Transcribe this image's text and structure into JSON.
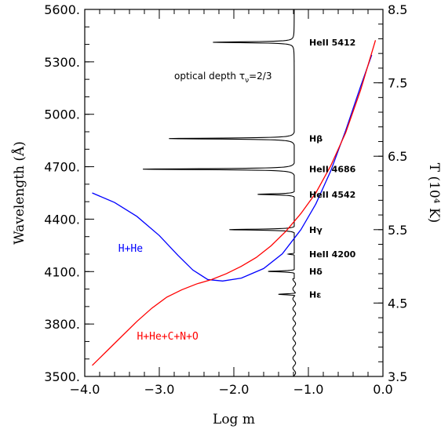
{
  "chart_data": {
    "type": "line",
    "xlabel": "Log m",
    "ylabel_left": "Wavelength (Å)",
    "ylabel_right": "T (10⁴ K)",
    "xlim": [
      -4.0,
      0.0
    ],
    "ylim_left": [
      3500,
      5600
    ],
    "ylim_right": [
      3.5,
      8.5
    ],
    "x_ticks": [
      -4.0,
      -3.0,
      -2.0,
      -1.0,
      0.0
    ],
    "x_tick_labels": [
      "−4.0",
      "−3.0",
      "−2.0",
      "−1.0",
      "0.0"
    ],
    "y_left_ticks": [
      3500,
      3800,
      4100,
      4400,
      4700,
      5000,
      5300,
      5600
    ],
    "y_left_tick_labels": [
      "3500.",
      "3800.",
      "4100.",
      "4400.",
      "4700.",
      "5000.",
      "5300.",
      "5600."
    ],
    "y_right_ticks": [
      3.5,
      4.5,
      5.5,
      6.5,
      7.5,
      8.5
    ],
    "y_right_tick_labels": [
      "3.5",
      "4.5",
      "5.5",
      "6.5",
      "7.5",
      "8.5"
    ],
    "grid": false,
    "optical_depth_label": "optical depth τν=2/3",
    "optical_depth_text": {
      "main": "optical depth τ",
      "sub": "ν",
      "tail": "=2/3"
    },
    "optical_depth_continuum": [
      [
        -1.09,
        3500
      ],
      [
        -1.1,
        3580
      ],
      [
        -1.115,
        3700
      ],
      [
        -1.125,
        3800
      ],
      [
        -1.135,
        3900
      ],
      [
        -1.14,
        3980
      ],
      [
        -1.15,
        4080
      ],
      [
        -1.155,
        4200
      ],
      [
        -1.155,
        4300
      ],
      [
        -1.16,
        4400
      ],
      [
        -1.165,
        4550
      ],
      [
        -1.17,
        4700
      ],
      [
        -1.175,
        4860
      ],
      [
        -1.18,
        5000
      ],
      [
        -1.185,
        5200
      ],
      [
        -1.19,
        5410
      ],
      [
        -1.19,
        5600
      ]
    ],
    "line_features": [
      {
        "label": "HeII 5412",
        "wavelength": 5412,
        "min_log_m": -2.28,
        "label_wavelength": 5412
      },
      {
        "label": "Hβ",
        "wavelength": 4861,
        "min_log_m": -2.87,
        "label_wavelength": 4861
      },
      {
        "label": "HeII 4686",
        "wavelength": 4686,
        "min_log_m": -3.22,
        "label_wavelength": 4686
      },
      {
        "label": "HeII 4542",
        "wavelength": 4542,
        "min_log_m": -1.68,
        "label_wavelength": 4542
      },
      {
        "label": "Hγ",
        "wavelength": 4340,
        "min_log_m": -2.06,
        "label_wavelength": 4340
      },
      {
        "label": "HeII 4200",
        "wavelength": 4200,
        "min_log_m": -1.27,
        "label_wavelength": 4200
      },
      {
        "label": "Hδ",
        "wavelength": 4101,
        "min_log_m": -1.54,
        "label_wavelength": 4101
      },
      {
        "label": "Hε",
        "wavelength": 3970,
        "min_log_m": -1.42,
        "label_wavelength": 3970
      }
    ],
    "series": [
      {
        "name": "H+He",
        "color": "#0000ff",
        "axis": "right",
        "label_x": -3.55,
        "label_y": 5.2,
        "points": [
          [
            -3.9,
            6.0
          ],
          [
            -3.6,
            5.87
          ],
          [
            -3.3,
            5.68
          ],
          [
            -3.0,
            5.42
          ],
          [
            -2.75,
            5.15
          ],
          [
            -2.55,
            4.95
          ],
          [
            -2.35,
            4.82
          ],
          [
            -2.15,
            4.8
          ],
          [
            -1.9,
            4.84
          ],
          [
            -1.6,
            4.97
          ],
          [
            -1.35,
            5.17
          ],
          [
            -1.1,
            5.5
          ],
          [
            -0.9,
            5.85
          ],
          [
            -0.7,
            6.3
          ],
          [
            -0.5,
            6.85
          ],
          [
            -0.3,
            7.45
          ],
          [
            -0.15,
            7.88
          ]
        ]
      },
      {
        "name": "H+He+C+N+O",
        "color": "#ff0000",
        "axis": "right",
        "label_x": -3.3,
        "label_y": 4.0,
        "points": [
          [
            -3.9,
            3.65
          ],
          [
            -3.7,
            3.85
          ],
          [
            -3.5,
            4.05
          ],
          [
            -3.3,
            4.25
          ],
          [
            -3.1,
            4.43
          ],
          [
            -2.9,
            4.58
          ],
          [
            -2.7,
            4.68
          ],
          [
            -2.5,
            4.76
          ],
          [
            -2.3,
            4.82
          ],
          [
            -2.1,
            4.9
          ],
          [
            -1.9,
            5.0
          ],
          [
            -1.7,
            5.12
          ],
          [
            -1.5,
            5.28
          ],
          [
            -1.3,
            5.48
          ],
          [
            -1.1,
            5.72
          ],
          [
            -0.9,
            6.0
          ],
          [
            -0.7,
            6.37
          ],
          [
            -0.5,
            6.82
          ],
          [
            -0.3,
            7.4
          ],
          [
            -0.1,
            8.08
          ]
        ]
      }
    ]
  }
}
